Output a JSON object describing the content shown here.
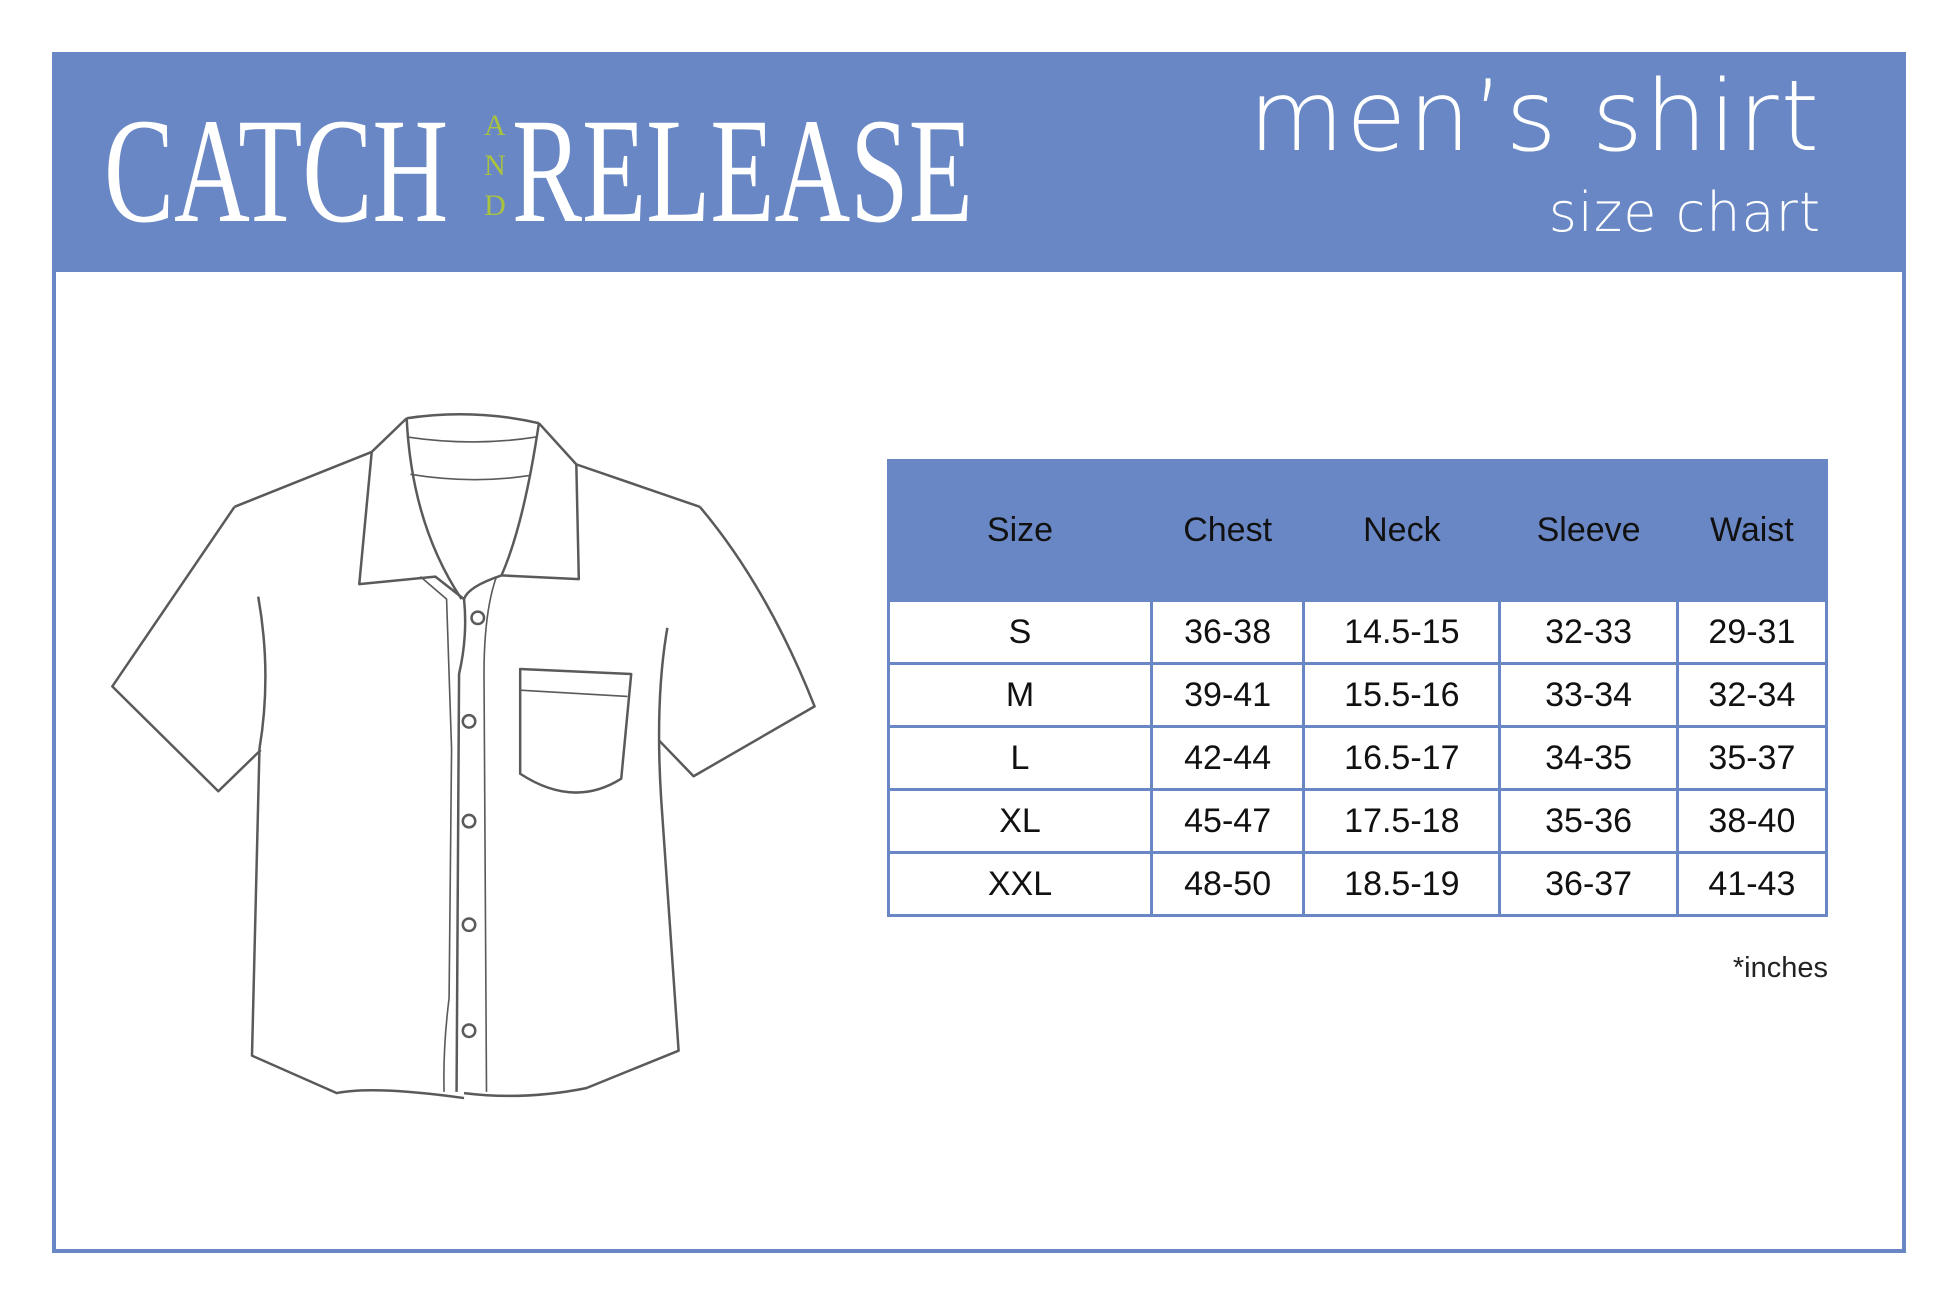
{
  "brand": {
    "logo_text": "CATCH AND RELEASE",
    "logo_left": "CATCH",
    "logo_mid": "AND",
    "logo_right": "RELEASE",
    "accent_color": "#a9c23f"
  },
  "header": {
    "title": "men’s shirt",
    "subtitle": "size chart",
    "background_color": "#6987c4"
  },
  "illustration": {
    "icon": "shirt-line-drawing-icon"
  },
  "table": {
    "columns": [
      "Size",
      "Chest",
      "Neck",
      "Sleeve",
      "Waist"
    ],
    "rows": [
      [
        "S",
        "36-38",
        "14.5-15",
        "32-33",
        "29-31"
      ],
      [
        "M",
        "39-41",
        "15.5-16",
        "33-34",
        "32-34"
      ],
      [
        "L",
        "42-44",
        "16.5-17",
        "34-35",
        "35-37"
      ],
      [
        "XL",
        "45-47",
        "17.5-18",
        "35-36",
        "38-40"
      ],
      [
        "XXL",
        "48-50",
        "18.5-19",
        "36-37",
        "41-43"
      ]
    ],
    "unit_note": "*inches"
  }
}
